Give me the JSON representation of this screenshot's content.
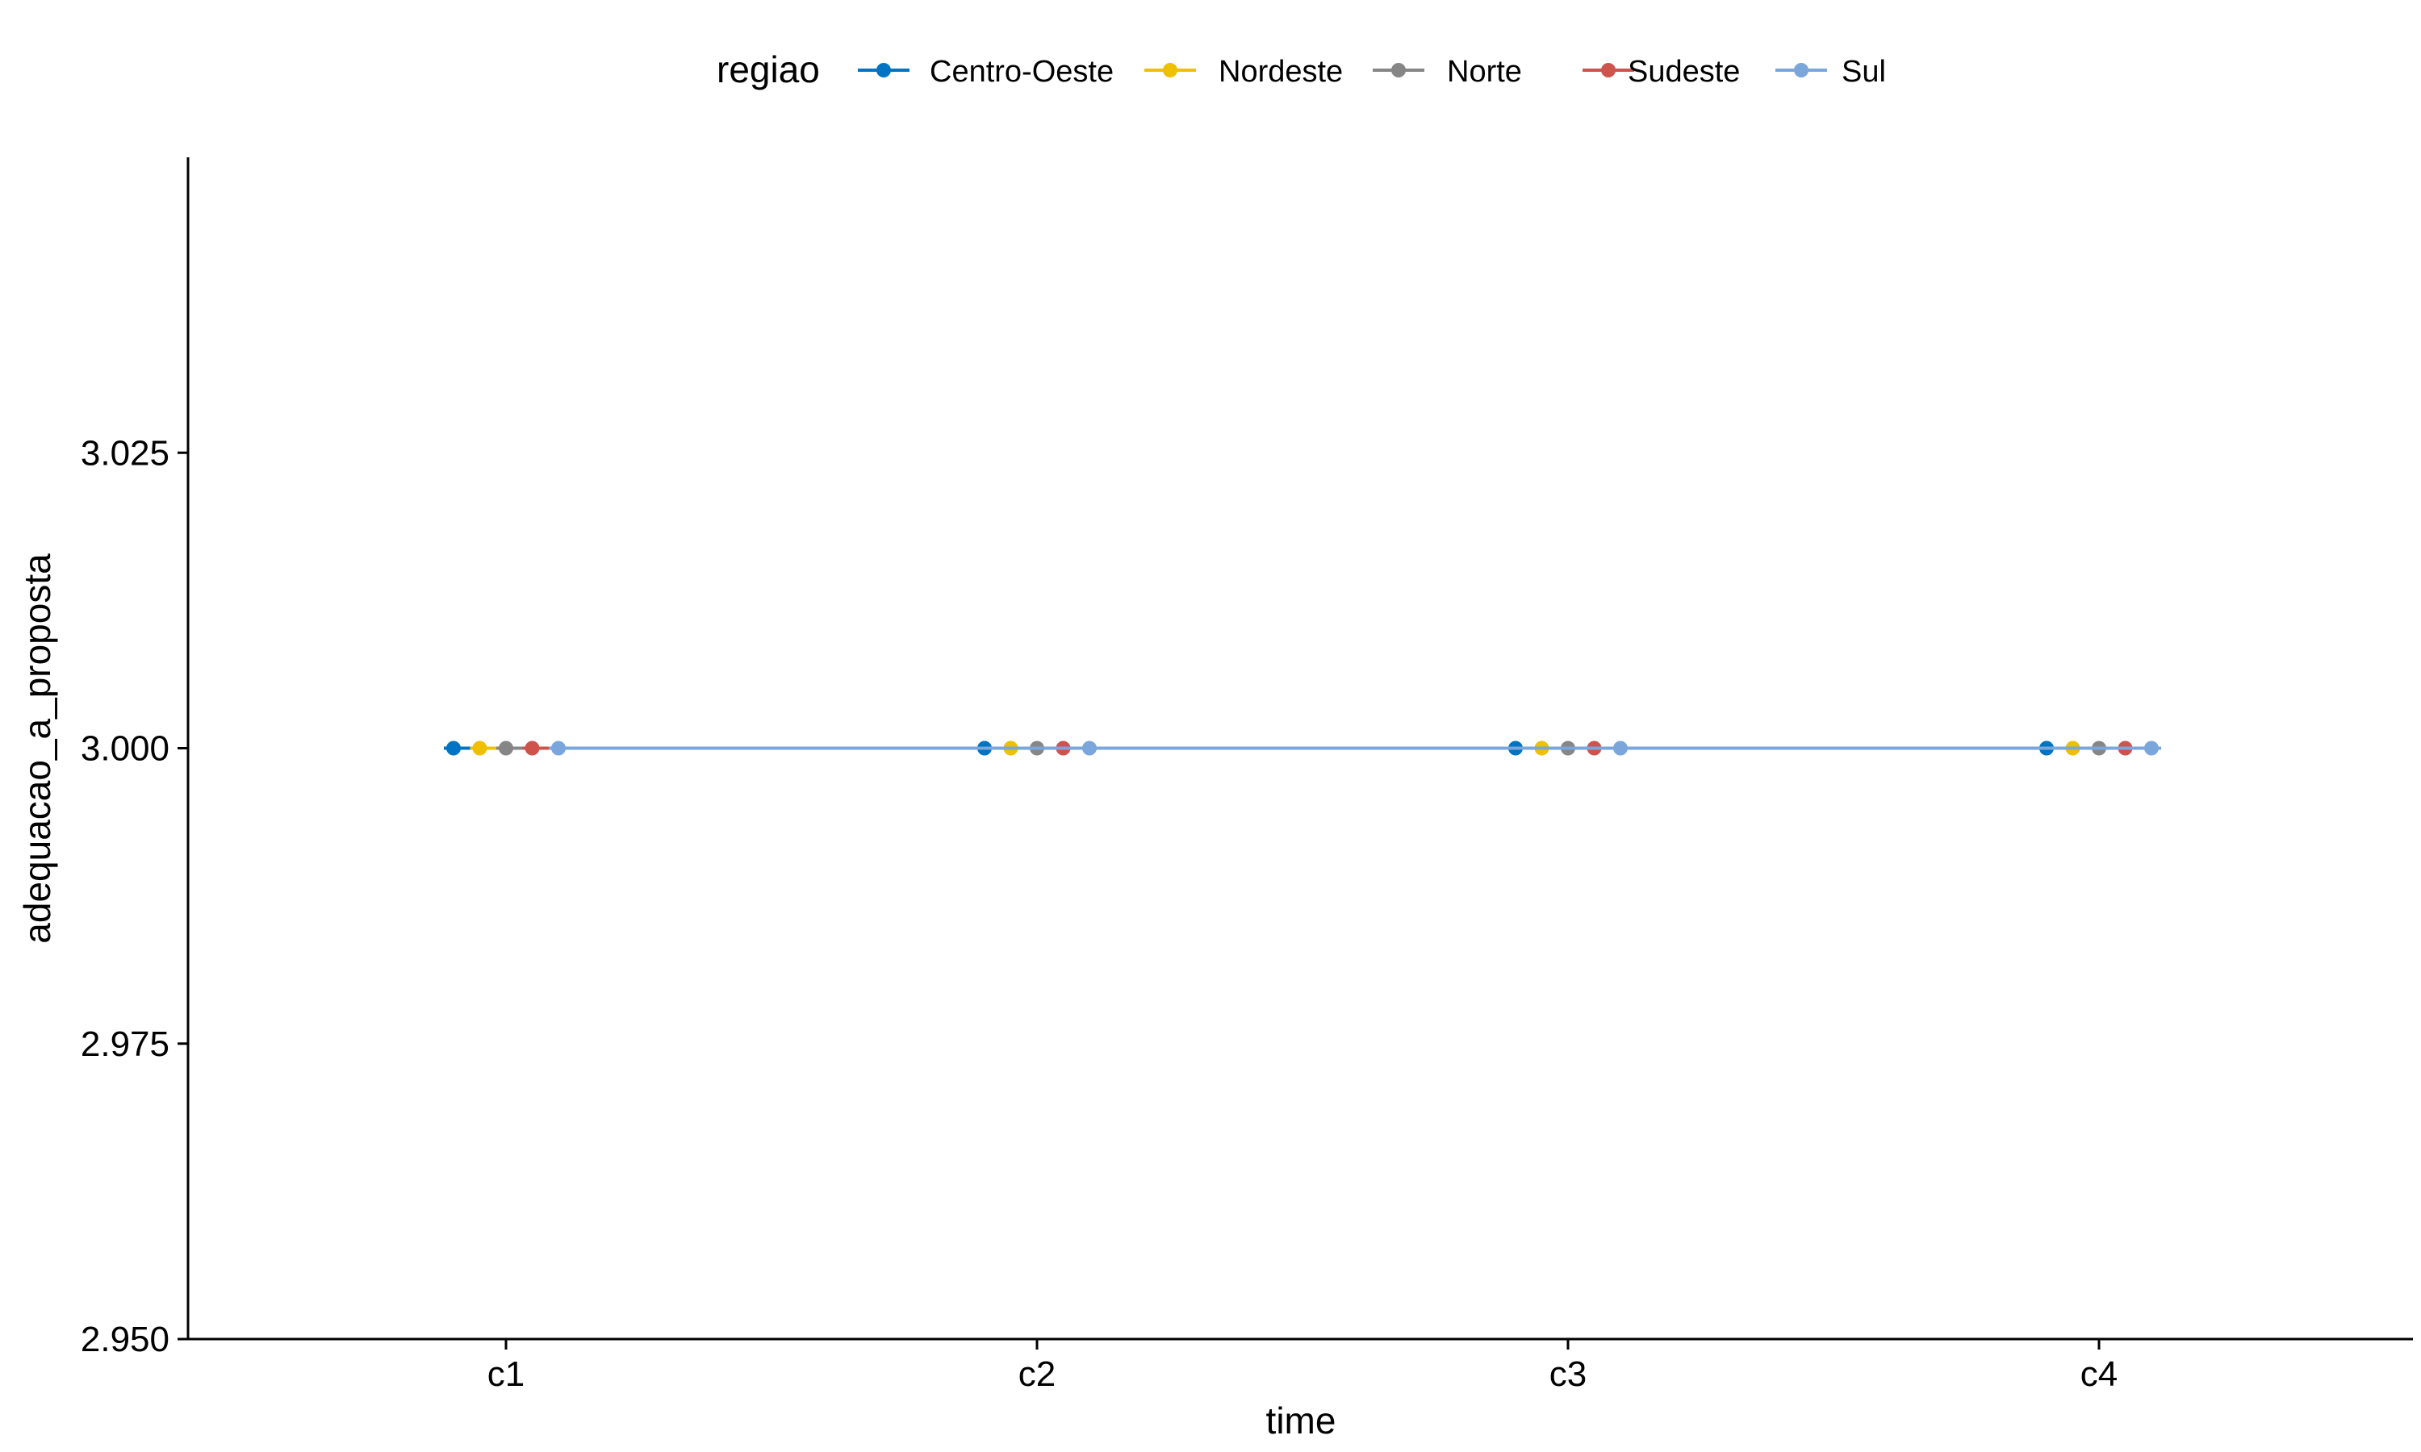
{
  "chart_data": {
    "type": "line",
    "title": "",
    "xlabel": "time",
    "ylabel": "adequacao_a_proposta",
    "categories": [
      "c1",
      "c2",
      "c3",
      "c4"
    ],
    "ylim": [
      2.95,
      3.05
    ],
    "yticks": [
      "2.950",
      "2.975",
      "3.000",
      "3.025"
    ],
    "ytick_values": [
      2.95,
      2.975,
      3.0,
      3.025
    ],
    "grid": false,
    "legend": {
      "title": "regiao",
      "placement": "top"
    },
    "series": [
      {
        "name": "Centro-Oeste",
        "color": "#0073C2",
        "values": [
          3,
          3,
          3,
          3
        ]
      },
      {
        "name": "Nordeste",
        "color": "#EFC000",
        "values": [
          3,
          3,
          3,
          3
        ]
      },
      {
        "name": "Norte",
        "color": "#868686",
        "values": [
          3,
          3,
          3,
          3
        ]
      },
      {
        "name": "Sudeste",
        "color": "#CD534C",
        "values": [
          3,
          3,
          3,
          3
        ]
      },
      {
        "name": "Sul",
        "color": "#7AA6DC",
        "values": [
          3,
          3,
          3,
          3
        ]
      }
    ]
  }
}
